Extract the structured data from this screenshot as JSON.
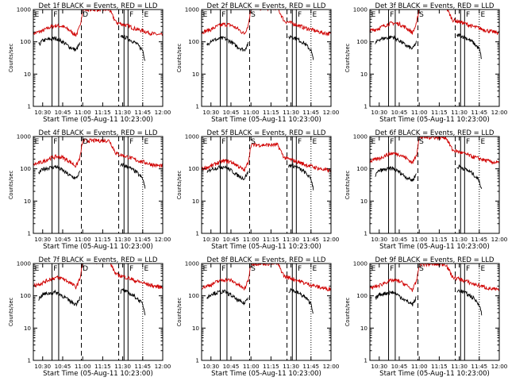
{
  "chart_data": {
    "type": "line",
    "panel_titles": [
      "Det 1f BLACK = Events, RED = LLD",
      "Det 2f BLACK = Events, RED = LLD",
      "Det 3f BLACK = Events, RED = LLD",
      "Det 4f BLACK = Events, RED = LLD",
      "Det 5f BLACK = Events, RED = LLD",
      "Det 6f BLACK = Events, RED = LLD",
      "Det 7f BLACK = Events, RED = LLD",
      "Det 8f BLACK = Events, RED = LLD",
      "Det 9f BLACK = Events, RED = LLD"
    ],
    "xlabel": "Start Time (05-Aug-11 10:23:00)",
    "ylabel": "Counts/sec",
    "x_ticks": [
      "10:30",
      "10:45",
      "11:00",
      "11:15",
      "11:30",
      "11:45",
      "12:00"
    ],
    "y_ticks": [
      "1",
      "10",
      "100",
      "1000"
    ],
    "x_range_minutes_after_start": [
      0,
      97
    ],
    "y_range": [
      1,
      1000
    ],
    "y_scale": "log",
    "series_colors": {
      "events": "#000000",
      "lld": "#d00000"
    },
    "mode_markers": [
      {
        "label": "E",
        "time": "10:23",
        "style": "dotted"
      },
      {
        "label": "F",
        "time": "10:37",
        "style": "solid"
      },
      {
        "label": "D",
        "time": "10:59",
        "style": "dashed"
      },
      {
        "label": "S",
        "time": "11:00",
        "style": "none"
      },
      {
        "label": "F",
        "time": "11:34",
        "style": "solid"
      },
      {
        "label": "E",
        "time": "11:45",
        "style": "dotted"
      }
    ],
    "marker_labels_by_panel": [
      [
        "E",
        "F",
        "D",
        "F",
        "E"
      ],
      [
        "E",
        "F",
        "S",
        "F",
        "E"
      ],
      [
        "E",
        "F",
        "S",
        "F",
        "E"
      ],
      [
        "E",
        "F",
        "D",
        "F",
        "E"
      ],
      [
        "E",
        "F",
        "S",
        "F",
        "E"
      ],
      [
        "E",
        "F",
        "S",
        "F",
        "E"
      ],
      [
        "E",
        "F",
        "D",
        "F",
        "E"
      ],
      [
        "E",
        "F",
        "S",
        "F",
        "E"
      ],
      [
        "E",
        "F",
        "S",
        "F",
        "E"
      ]
    ],
    "extra_line_times": [
      "10:42",
      "11:27",
      "11:31"
    ],
    "series": [
      {
        "name": "Events",
        "color": "#000000",
        "x": [
          "10:27",
          "10:30",
          "10:35",
          "10:40",
          "10:45",
          "10:50",
          "10:55",
          "10:58",
          "11:28",
          "11:30",
          "11:35",
          "11:40",
          "11:45",
          "11:47"
        ],
        "values": [
          80,
          110,
          120,
          130,
          100,
          70,
          55,
          90,
          130,
          150,
          120,
          90,
          55,
          25
        ]
      },
      {
        "name": "LLD",
        "color": "#d00000",
        "x": [
          "10:23",
          "10:30",
          "10:35",
          "10:40",
          "10:45",
          "10:50",
          "10:55",
          "10:58",
          "11:00",
          "11:20",
          "11:25",
          "11:30",
          "11:35",
          "11:40",
          "11:45",
          "11:50",
          "11:55",
          "12:00"
        ],
        "values": [
          180,
          220,
          280,
          320,
          300,
          230,
          160,
          300,
          1000,
          1000,
          400,
          350,
          300,
          250,
          220,
          190,
          170,
          160
        ]
      }
    ]
  }
}
